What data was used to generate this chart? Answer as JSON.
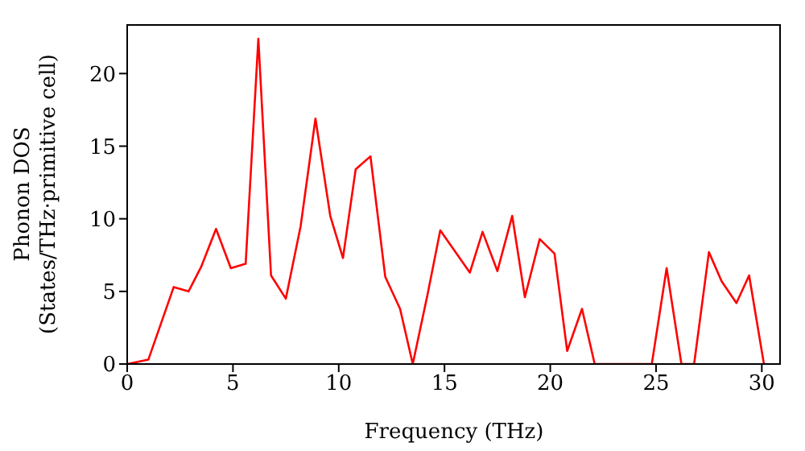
{
  "chart_data": {
    "type": "line",
    "xlabel": "Frequency (THz)",
    "ylabel": "Phonon DOS\n(States/THz·primitive cell)",
    "x": [
      0,
      1,
      2.2,
      2.9,
      3.5,
      4.2,
      4.9,
      5.6,
      6.2,
      6.8,
      7.5,
      8.2,
      8.9,
      9.6,
      10.2,
      10.8,
      11.5,
      12.2,
      12.9,
      13.5,
      14.2,
      14.8,
      16.2,
      16.8,
      17.5,
      18.2,
      18.8,
      19.5,
      20.2,
      20.8,
      21.5,
      22.1,
      24.8,
      25.5,
      26.2,
      26.8,
      27.5,
      28.1,
      28.8,
      29.4,
      30.1
    ],
    "series": [
      {
        "color": "#ff0000",
        "values": [
          0,
          0.3,
          5.3,
          5.0,
          6.7,
          9.3,
          6.6,
          6.9,
          22.4,
          6.1,
          4.5,
          9.5,
          16.9,
          10.2,
          7.3,
          13.4,
          14.3,
          6.0,
          3.8,
          0,
          4.8,
          9.2,
          6.3,
          9.1,
          6.4,
          10.2,
          4.6,
          8.6,
          7.6,
          0.9,
          3.8,
          0,
          0,
          6.6,
          0,
          0,
          7.7,
          5.7,
          4.2,
          6.1,
          0
        ]
      }
    ],
    "xlim": [
      0,
      30.9
    ],
    "xticks": [
      0,
      5,
      10,
      15,
      20,
      25,
      30
    ],
    "ylim": [
      0,
      23.4
    ],
    "yticks": [
      0,
      5,
      10,
      15,
      20
    ],
    "grid": false,
    "legend": false,
    "marker": "none",
    "line_style": "solid"
  }
}
